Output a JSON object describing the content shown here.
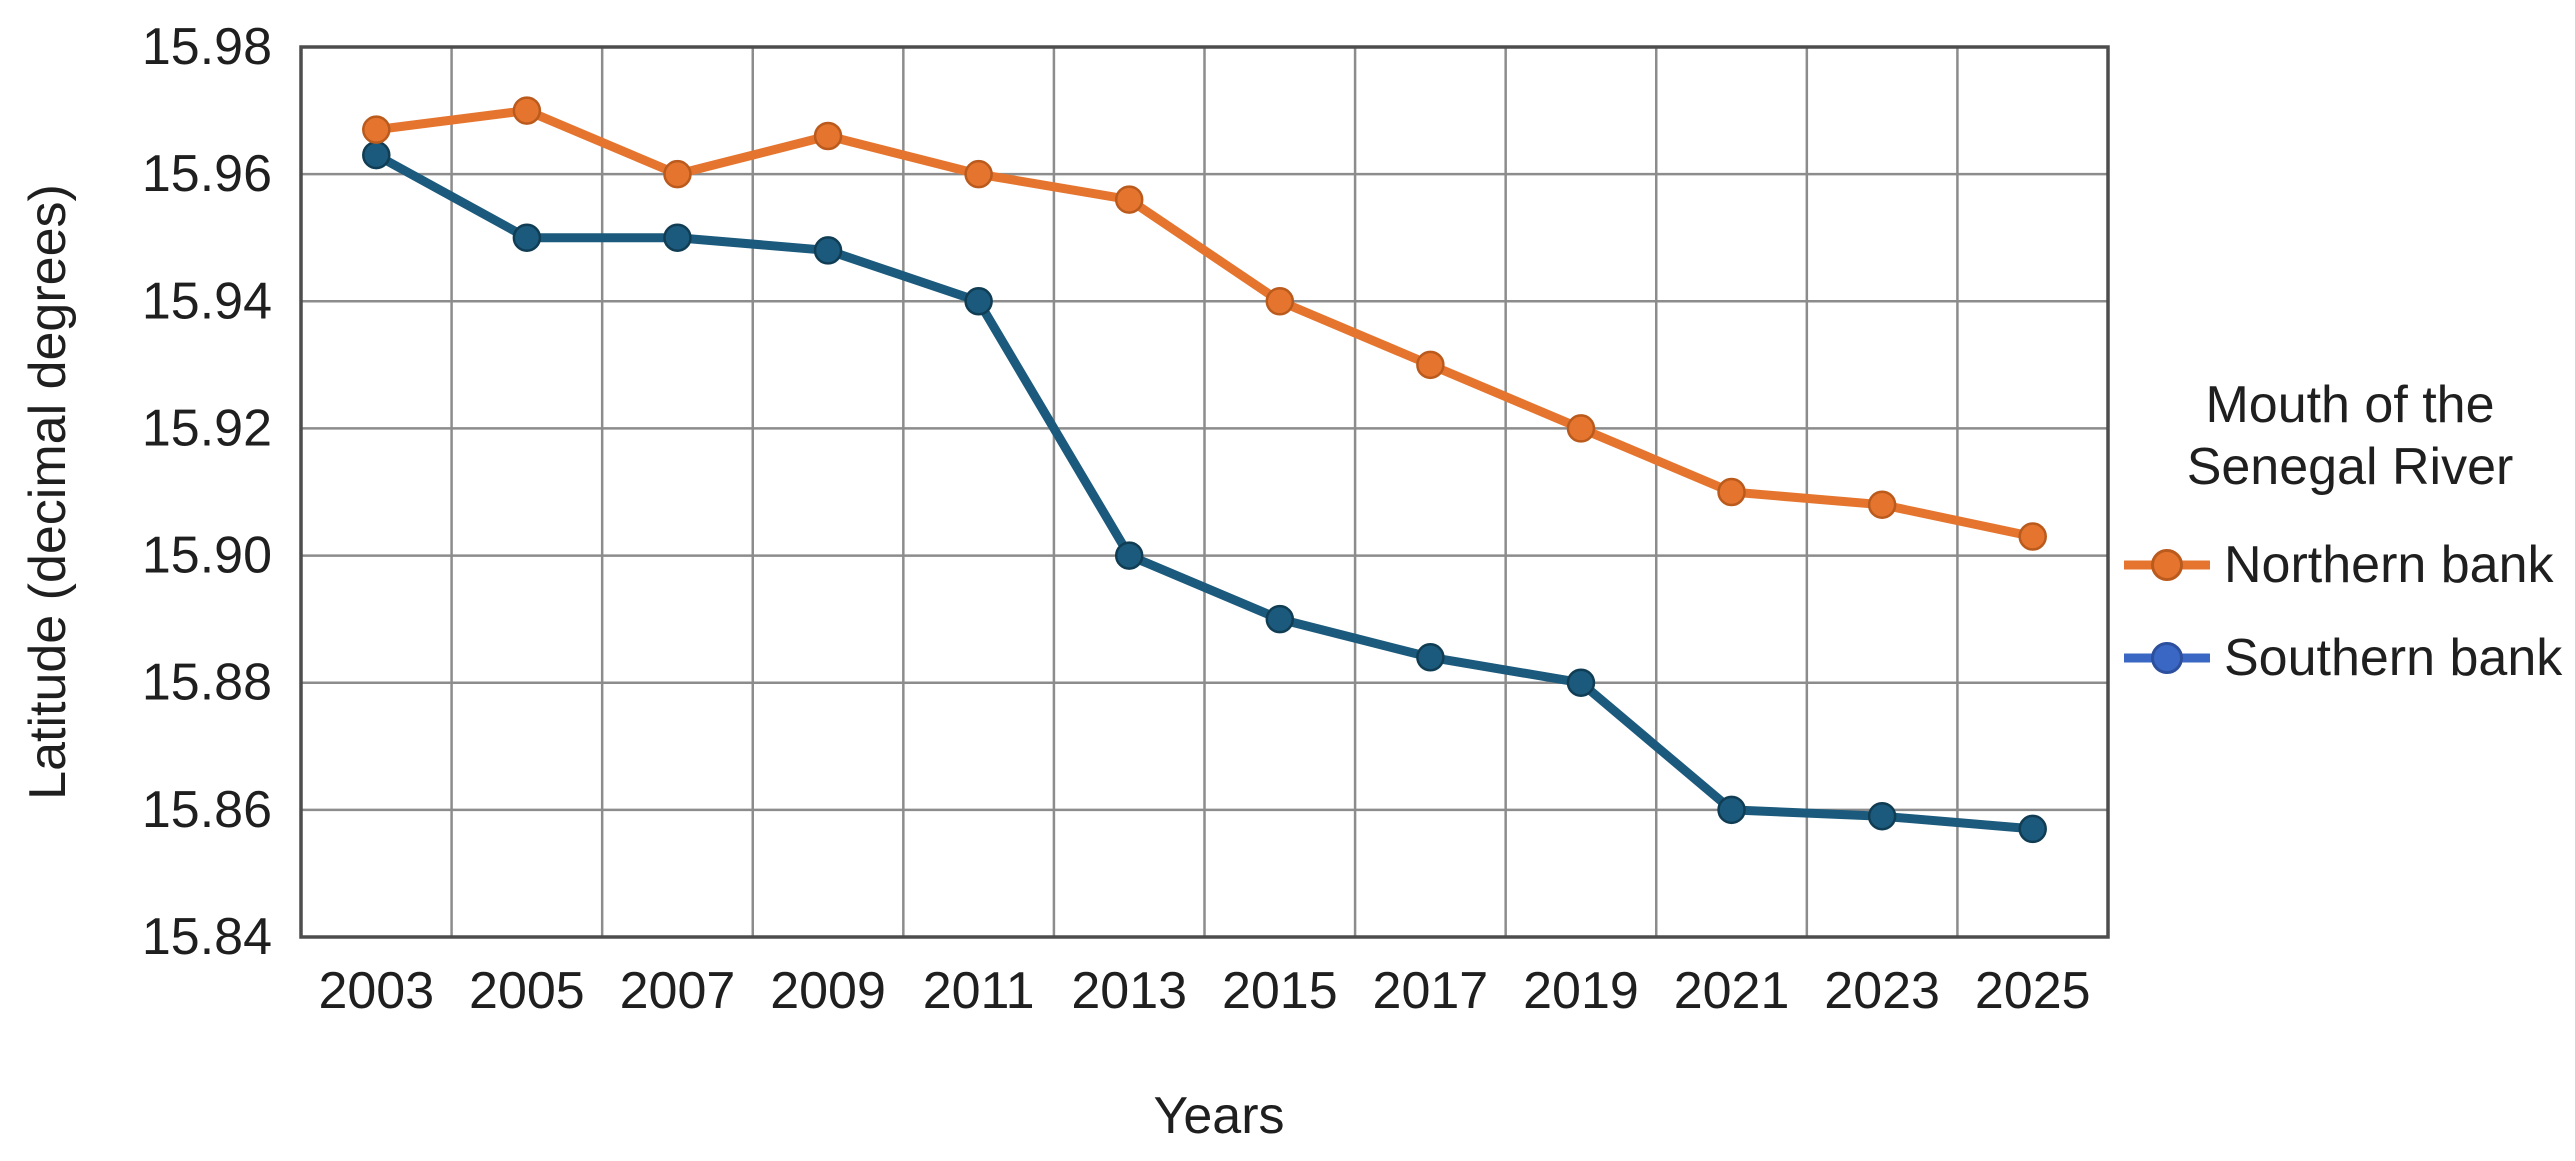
{
  "chart_data": {
    "type": "line",
    "legend_title": "Mouth of the Senegal River",
    "xlabel": "Years",
    "ylabel": "Latitude (decimal degrees)",
    "categories": [
      "2003",
      "2005",
      "2007",
      "2009",
      "2011",
      "2013",
      "2015",
      "2017",
      "2019",
      "2021",
      "2023",
      "2025"
    ],
    "series": [
      {
        "name": "Northern bank",
        "color": "#E5752E",
        "marker_stroke": "#BA5A1D",
        "legend_color": "#E5752E",
        "legend_marker_stroke": "#BA5A1D",
        "values": [
          15.967,
          15.97,
          15.96,
          15.966,
          15.96,
          15.956,
          15.94,
          15.93,
          15.92,
          15.91,
          15.908,
          15.903
        ]
      },
      {
        "name": "Southern bank",
        "color": "#1B5A7C",
        "marker_stroke": "#103D54",
        "legend_color": "#3A67C4",
        "legend_marker_stroke": "#2C4F9E",
        "values": [
          15.963,
          15.95,
          15.95,
          15.948,
          15.94,
          15.9,
          15.89,
          15.884,
          15.88,
          15.86,
          15.859,
          15.857
        ]
      }
    ],
    "ylim": [
      15.84,
      15.98
    ],
    "ytick_labels": [
      "15.98",
      "15.96",
      "15.94",
      "15.92",
      "15.90",
      "15.88",
      "15.86",
      "15.84"
    ],
    "grid": true,
    "legend_position": "right"
  },
  "colors": {
    "gridline": "#8C8C8C",
    "plot_border": "#4D4D4D",
    "text": "#1F1F1F",
    "background": "#FFFFFF"
  }
}
